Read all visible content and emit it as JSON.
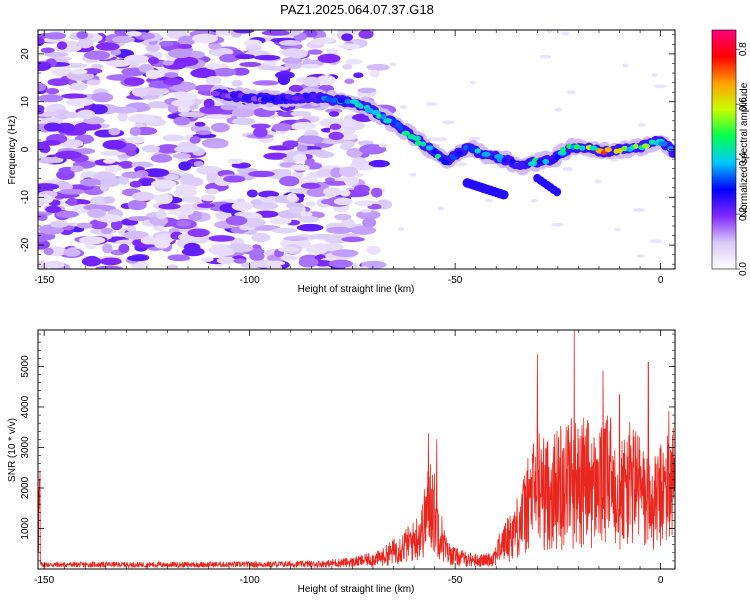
{
  "figure": {
    "title": "PAZ1.2025.064.07.37.G18"
  },
  "chart_data": [
    {
      "type": "heatmap",
      "xlabel": "Height of straight line (km)",
      "ylabel": "Frequency (Hz)",
      "xlim": [
        -151.5,
        3.5
      ],
      "ylim": [
        -25,
        25
      ],
      "xticks": [
        -150,
        -100,
        -50,
        0
      ],
      "yticks": [
        -20,
        -10,
        0,
        10,
        20
      ],
      "colorbar": {
        "label": "Normalized spectral amplitude",
        "range": [
          0,
          0.87
        ],
        "ticks": [
          0.0,
          0.2,
          0.4,
          0.6,
          0.8
        ],
        "colormap": [
          "#ffffff",
          "#d9c8f8",
          "#7f28ff",
          "#0000ff",
          "#00c8ff",
          "#00ff50",
          "#c8ff00",
          "#ffa000",
          "#ff0000",
          "#ff0080"
        ]
      },
      "ridge": {
        "description_points": [
          {
            "x": -108,
            "f": 11.5,
            "a": 0.25
          },
          {
            "x": -95,
            "f": 10.5,
            "a": 0.3
          },
          {
            "x": -85,
            "f": 11.0,
            "a": 0.35
          },
          {
            "x": -76,
            "f": 10.0,
            "a": 0.4
          },
          {
            "x": -72,
            "f": 9.0,
            "a": 0.45
          },
          {
            "x": -68,
            "f": 7.0,
            "a": 0.55
          },
          {
            "x": -64,
            "f": 5.0,
            "a": 0.5
          },
          {
            "x": -60,
            "f": 2.5,
            "a": 0.45
          },
          {
            "x": -56,
            "f": 0.0,
            "a": 0.5
          },
          {
            "x": -52,
            "f": -2.5,
            "a": 0.45
          },
          {
            "x": -47,
            "f": 0.5,
            "a": 0.4
          },
          {
            "x": -43,
            "f": -1.0,
            "a": 0.45
          },
          {
            "x": -38,
            "f": -2.0,
            "a": 0.45
          },
          {
            "x": -34,
            "f": -3.5,
            "a": 0.4
          },
          {
            "x": -30,
            "f": -2.5,
            "a": 0.5
          },
          {
            "x": -26,
            "f": -2.0,
            "a": 0.45
          },
          {
            "x": -22,
            "f": 0.5,
            "a": 0.5
          },
          {
            "x": -18,
            "f": 0.5,
            "a": 0.6
          },
          {
            "x": -14,
            "f": -0.5,
            "a": 0.87
          },
          {
            "x": -10,
            "f": 0.0,
            "a": 0.7
          },
          {
            "x": -5,
            "f": 0.5,
            "a": 0.65
          },
          {
            "x": 0,
            "f": 2.0,
            "a": 0.6
          },
          {
            "x": 3,
            "f": -0.5,
            "a": 0.55
          }
        ]
      }
    },
    {
      "type": "line",
      "xlabel": "Height of straight line (km)",
      "ylabel": "SNR (10 * v/v)",
      "xlim": [
        -151.5,
        3.5
      ],
      "ylim": [
        0,
        5900
      ],
      "xticks": [
        -150,
        -100,
        -50,
        0
      ],
      "yticks": [
        1000,
        2000,
        3000,
        4000,
        5000
      ],
      "color": "#e8261e",
      "series": [
        {
          "envelope_x": [
            -151,
            -140,
            -120,
            -100,
            -85,
            -75,
            -68,
            -64,
            -60,
            -58,
            -56,
            -54,
            -52,
            -50,
            -47,
            -44,
            -41,
            -39,
            -36,
            -34,
            -32,
            -30,
            -28,
            -26,
            -24,
            -22,
            -20,
            -18,
            -16,
            -14,
            -12,
            -10,
            -8,
            -6,
            -4,
            -2,
            0,
            2,
            3.5
          ],
          "envelope_y": [
            150,
            150,
            150,
            160,
            180,
            240,
            400,
            700,
            1000,
            1400,
            2500,
            1500,
            600,
            450,
            350,
            300,
            350,
            800,
            1300,
            1700,
            2400,
            3000,
            2700,
            2800,
            3100,
            3300,
            3000,
            3200,
            2800,
            3000,
            3300,
            2600,
            3000,
            3100,
            2500,
            2200,
            2600,
            2900,
            3100
          ]
        }
      ],
      "peaks": [
        {
          "x": -56.5,
          "y": 3350
        },
        {
          "x": -54.5,
          "y": 3200
        },
        {
          "x": -30,
          "y": 5300
        },
        {
          "x": -21,
          "y": 5900
        },
        {
          "x": -14,
          "y": 4900
        },
        {
          "x": -10,
          "y": 4300
        },
        {
          "x": -3,
          "y": 5100
        },
        {
          "x": 2,
          "y": 3900
        }
      ]
    }
  ]
}
